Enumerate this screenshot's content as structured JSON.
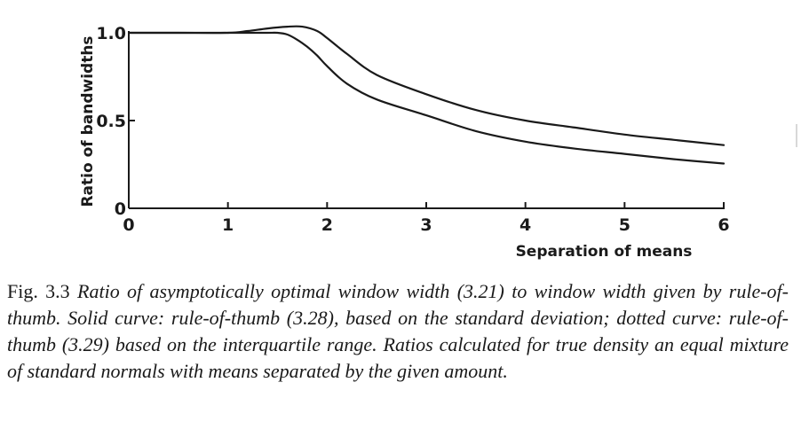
{
  "chart_data": {
    "type": "line",
    "xlabel": "Separation of means",
    "ylabel": "Ratio of bandwidths",
    "xlim": [
      0,
      6
    ],
    "ylim": [
      0,
      1.0
    ],
    "x_ticks": [
      "0",
      "1",
      "2",
      "3",
      "4",
      "5",
      "6"
    ],
    "y_ticks": [
      "0",
      "0.5",
      "1.0"
    ],
    "grid": false,
    "series": [
      {
        "x": [
          0,
          0.5,
          1.0,
          1.2,
          1.4,
          1.6,
          1.75,
          1.9,
          2.0,
          2.2,
          2.5,
          3.0,
          3.5,
          4.0,
          4.5,
          5.0,
          5.5,
          6.0
        ],
        "values": [
          1.0,
          1.0,
          1.0,
          1.01,
          1.025,
          1.035,
          1.035,
          1.01,
          0.97,
          0.88,
          0.76,
          0.65,
          0.56,
          0.5,
          0.46,
          0.42,
          0.39,
          0.36
        ]
      },
      {
        "x": [
          0,
          0.5,
          1.0,
          1.2,
          1.4,
          1.5,
          1.6,
          1.7,
          1.8,
          1.9,
          2.0,
          2.2,
          2.5,
          3.0,
          3.5,
          4.0,
          4.5,
          5.0,
          5.5,
          6.0
        ],
        "values": [
          1.0,
          1.0,
          1.0,
          1.0,
          1.0,
          1.0,
          0.99,
          0.96,
          0.92,
          0.87,
          0.81,
          0.71,
          0.62,
          0.53,
          0.44,
          0.38,
          0.34,
          0.31,
          0.28,
          0.255
        ]
      }
    ]
  },
  "caption": {
    "label": "Fig. 3.3",
    "text": "Ratio of asymptotically optimal window width (3.21) to window width given by rule-of-thumb. Solid curve: rule-of-thumb (3.28), based on the standard deviation; dotted curve: rule-of-thumb (3.29) based on the interquartile range. Ratios calculated for true density an equal mixture of standard normals with means separated by the given amount."
  }
}
